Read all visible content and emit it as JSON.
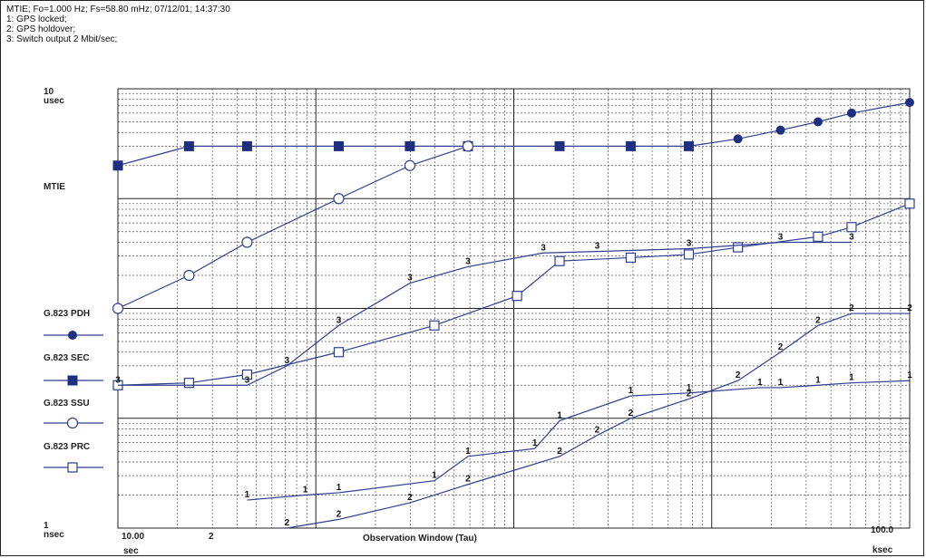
{
  "header": {
    "line1": "MTIE; Fo=1.000 Hz; Fs=58.80 mHz; 07/12/01; 14:37:30",
    "line2": "1:  GPS locked;",
    "line3": "2:  GPS holdover;",
    "line4": "3:  Switch output 2 Mbit/sec;"
  },
  "chart_data": {
    "type": "line",
    "x_scale": "log",
    "y_scale": "log",
    "xlim": [
      10,
      120
    ],
    "ylim": [
      0.001,
      10
    ],
    "grid": true,
    "y_top_label": [
      "10",
      "usec"
    ],
    "y_bottom_label": [
      "1",
      "nsec"
    ],
    "y_axis_title": "MTIE",
    "x_left_label": [
      "10.00",
      "sec"
    ],
    "x_tick_2": "2",
    "x_right_label": [
      "100.0",
      "ksec"
    ],
    "xlabel": "Observation Window (Tau)",
    "legend_placement": "left",
    "legend": [
      {
        "name": "G.823 PDH",
        "marker": "filled-circle"
      },
      {
        "name": "G.823 SEC",
        "marker": "filled-square"
      },
      {
        "name": "G.823 SSU",
        "marker": "open-circle"
      },
      {
        "name": "G.823 PRC",
        "marker": "open-square"
      }
    ],
    "series": [
      {
        "name": "G.823 PDH",
        "marker": "filled-circle",
        "points": [
          [
            60,
            3.0
          ],
          [
            70,
            3.5
          ],
          [
            80,
            4.2
          ],
          [
            90,
            5.0
          ],
          [
            100,
            6.0
          ],
          [
            120,
            7.5
          ]
        ]
      },
      {
        "name": "G.823 SEC",
        "marker": "filled-square",
        "points": [
          [
            10,
            2.0
          ],
          [
            12.5,
            3.0
          ],
          [
            15,
            3.0
          ],
          [
            20,
            3.0
          ],
          [
            25,
            3.0
          ],
          [
            30,
            3.0
          ],
          [
            40,
            3.0
          ],
          [
            50,
            3.0
          ],
          [
            60,
            3.0
          ]
        ]
      },
      {
        "name": "G.823 SSU",
        "marker": "open-circle",
        "points": [
          [
            10,
            0.1
          ],
          [
            12.5,
            0.2
          ],
          [
            15,
            0.4
          ],
          [
            20,
            1.0
          ],
          [
            25,
            2.0
          ],
          [
            30,
            3.0
          ]
        ]
      },
      {
        "name": "G.823 PRC",
        "marker": "open-square",
        "points": [
          [
            10,
            0.02
          ],
          [
            12.5,
            0.021
          ],
          [
            15,
            0.025
          ],
          [
            20,
            0.04
          ],
          [
            27,
            0.07
          ],
          [
            35,
            0.13
          ],
          [
            40,
            0.27
          ],
          [
            50,
            0.29
          ],
          [
            60,
            0.31
          ],
          [
            70,
            0.36
          ],
          [
            90,
            0.45
          ],
          [
            100,
            0.55
          ],
          [
            120,
            0.9
          ]
        ]
      },
      {
        "name": "3",
        "label_marker": "3",
        "points": [
          [
            10,
            0.02
          ],
          [
            15,
            0.02
          ],
          [
            17,
            0.03
          ],
          [
            20,
            0.07
          ],
          [
            25,
            0.17
          ],
          [
            30,
            0.24
          ],
          [
            38,
            0.32
          ],
          [
            45,
            0.33
          ],
          [
            60,
            0.35
          ],
          [
            80,
            0.4
          ],
          [
            100,
            0.4
          ]
        ]
      },
      {
        "name": "1",
        "label_marker": "1",
        "points": [
          [
            15,
            0.0018
          ],
          [
            18,
            0.002
          ],
          [
            20,
            0.0021
          ],
          [
            27,
            0.0027
          ],
          [
            30,
            0.0045
          ],
          [
            37,
            0.0053
          ],
          [
            40,
            0.0095
          ],
          [
            50,
            0.016
          ],
          [
            60,
            0.017
          ],
          [
            75,
            0.019
          ],
          [
            80,
            0.019
          ],
          [
            90,
            0.02
          ],
          [
            100,
            0.021
          ],
          [
            120,
            0.022
          ]
        ]
      },
      {
        "name": "2",
        "label_marker": "2",
        "points": [
          [
            17,
            0.001
          ],
          [
            20,
            0.0012
          ],
          [
            25,
            0.0017
          ],
          [
            30,
            0.0025
          ],
          [
            40,
            0.0045
          ],
          [
            45,
            0.007
          ],
          [
            50,
            0.01
          ],
          [
            60,
            0.015
          ],
          [
            70,
            0.022
          ],
          [
            80,
            0.04
          ],
          [
            90,
            0.07
          ],
          [
            100,
            0.09
          ],
          [
            120,
            0.09
          ]
        ]
      }
    ]
  }
}
